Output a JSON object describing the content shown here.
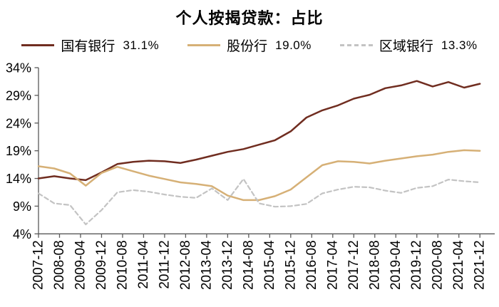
{
  "title": "个人按揭贷款：占比",
  "legend": {
    "items": [
      {
        "label": "国有银行",
        "value": "31.1%"
      },
      {
        "label": "股份行",
        "value": "19.0%"
      },
      {
        "label": "区域银行",
        "value": "13.3%"
      }
    ]
  },
  "colors": {
    "state_owned": "#702d20",
    "joint_stock": "#d6b076",
    "regional": "#c3c3c3",
    "axis": "#595959",
    "text": "#000000",
    "background": "#ffffff"
  },
  "chart_data": {
    "type": "line",
    "title": "个人按揭贷款：占比",
    "xlabel": "",
    "ylabel": "",
    "ylim": [
      4,
      34
    ],
    "grid": false,
    "legend_position": "top",
    "x": [
      "2007-12",
      "2008-06",
      "2008-12",
      "2009-06",
      "2009-12",
      "2010-06",
      "2010-12",
      "2011-06",
      "2011-12",
      "2012-06",
      "2012-12",
      "2013-06",
      "2013-12",
      "2014-06",
      "2014-12",
      "2015-06",
      "2015-12",
      "2016-06",
      "2016-12",
      "2017-06",
      "2017-12",
      "2018-06",
      "2018-12",
      "2019-06",
      "2019-12",
      "2020-06",
      "2020-12",
      "2021-06",
      "2021-12"
    ],
    "x_tick_labels": [
      "2007-12",
      "2008-08",
      "2009-04",
      "2009-12",
      "2010-08",
      "2011-04",
      "2011-12",
      "2012-08",
      "2013-04",
      "2013-12",
      "2014-08",
      "2015-04",
      "2015-12",
      "2016-08",
      "2017-04",
      "2017-12",
      "2018-08",
      "2019-04",
      "2019-12",
      "2020-08",
      "2021-04",
      "2021-12"
    ],
    "y_ticks": [
      {
        "value": 4,
        "label": "4%"
      },
      {
        "value": 9,
        "label": "9%"
      },
      {
        "value": 14,
        "label": "14%"
      },
      {
        "value": 19,
        "label": "19%"
      },
      {
        "value": 24,
        "label": "24%"
      },
      {
        "value": 29,
        "label": "29%"
      },
      {
        "value": 34,
        "label": "34%"
      }
    ],
    "series": [
      {
        "name": "国有银行",
        "current": "31.1%",
        "color": "#702d20",
        "dash": null,
        "values": [
          14.0,
          14.4,
          14.0,
          13.7,
          15.1,
          16.6,
          17.0,
          17.2,
          17.1,
          16.8,
          17.4,
          18.1,
          18.8,
          19.3,
          20.1,
          20.9,
          22.5,
          25.0,
          26.3,
          27.2,
          28.4,
          29.1,
          30.3,
          30.8,
          31.6,
          30.6,
          31.4,
          30.4,
          31.1
        ]
      },
      {
        "name": "股份行",
        "current": "19.0%",
        "color": "#d6b076",
        "dash": null,
        "values": [
          16.2,
          15.8,
          14.9,
          12.7,
          15.0,
          16.1,
          15.3,
          14.5,
          13.9,
          13.3,
          13.0,
          12.6,
          10.9,
          10.1,
          10.1,
          10.8,
          12.0,
          14.2,
          16.4,
          17.1,
          17.0,
          16.7,
          17.2,
          17.6,
          18.0,
          18.3,
          18.8,
          19.1,
          19.0
        ]
      },
      {
        "name": "区域银行",
        "current": "13.3%",
        "color": "#c3c3c3",
        "dash": [
          6,
          4
        ],
        "values": [
          11.3,
          9.5,
          9.2,
          5.7,
          8.3,
          11.5,
          11.9,
          11.6,
          11.1,
          10.7,
          10.5,
          12.2,
          10.1,
          13.9,
          9.5,
          8.9,
          9.0,
          9.4,
          11.3,
          12.0,
          12.5,
          12.4,
          11.8,
          11.4,
          12.3,
          12.6,
          13.8,
          13.5,
          13.3
        ]
      }
    ]
  }
}
